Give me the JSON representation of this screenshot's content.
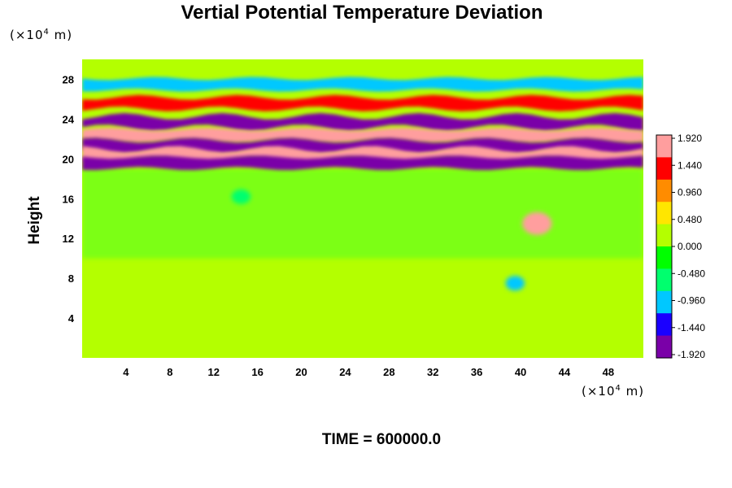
{
  "chart_data": {
    "type": "heatmap",
    "title": "Vertial Potential Temperature Deviation",
    "ylabel": "Height",
    "xlabel": "",
    "x_unit": {
      "prefix": "(×10",
      "exp": "4",
      "suffix": " m)"
    },
    "y_unit": {
      "prefix": "(×10",
      "exp": "4",
      "suffix": " m)"
    },
    "xlim": [
      0,
      51.2
    ],
    "ylim": [
      0,
      30
    ],
    "xticks": [
      "4",
      "8",
      "12",
      "16",
      "20",
      "24",
      "28",
      "32",
      "36",
      "40",
      "44",
      "48"
    ],
    "yticks": [
      "4",
      "8",
      "12",
      "16",
      "20",
      "24",
      "28"
    ],
    "colorbar": {
      "min": -1.92,
      "max": 1.92,
      "labels": [
        "1.920",
        "1.440",
        "0.960",
        "0.480",
        "0.000",
        "-0.480",
        "-0.960",
        "-1.440",
        "-1.920"
      ]
    },
    "colormap": [
      "#7a00a8",
      "#1a00ff",
      "#00c8ff",
      "#00ff6e",
      "#00ff00",
      "#b4ff00",
      "#ffe600",
      "#ff8c00",
      "#ff0000",
      "#ff9e9e"
    ],
    "bands": [
      {
        "y_center": 27.5,
        "value": -0.9,
        "description": ""
      },
      {
        "y_center": 25.6,
        "value": 1.3
      },
      {
        "y_center": 23.7,
        "value": -1.92
      },
      {
        "y_center": 22.4,
        "value": 1.92
      },
      {
        "y_center": 21.3,
        "value": -1.92
      },
      {
        "y_center": 20.4,
        "value": 1.92
      },
      {
        "y_center": 19.6,
        "value": -1.92
      }
    ],
    "features": [
      {
        "x": 41.5,
        "y": 13.5,
        "value": 1.6
      },
      {
        "x": 39.5,
        "y": 7.5,
        "value": -1.0
      },
      {
        "x": 14.5,
        "y": 16.2,
        "value": -0.7
      }
    ]
  },
  "footer": "TIME = 600000.0"
}
